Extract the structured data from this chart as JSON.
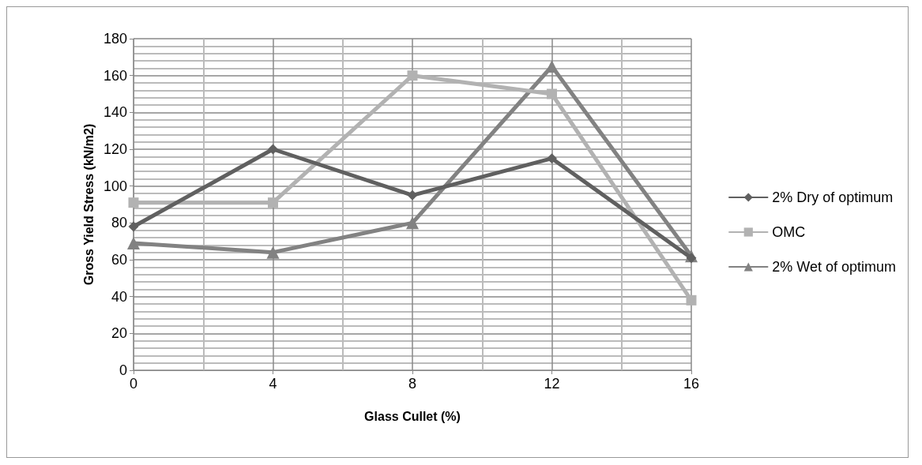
{
  "chart_data": {
    "type": "line",
    "xlabel": "Glass Cullet (%)",
    "ylabel": "Gross Yield Stress (kN/m2)",
    "x": [
      0,
      4,
      8,
      12,
      16
    ],
    "xlim": [
      0,
      16
    ],
    "xticks": [
      0,
      4,
      8,
      12,
      16
    ],
    "ylim": [
      0,
      180
    ],
    "yticks": [
      0,
      20,
      40,
      60,
      80,
      100,
      120,
      140,
      160,
      180
    ],
    "grid": true,
    "legend": "right",
    "series": [
      {
        "name": "2% Dry of optimum",
        "color": "#606060",
        "marker": "diamond",
        "values": [
          78,
          120,
          95,
          115,
          61
        ]
      },
      {
        "name": "OMC",
        "color": "#b2b2b2",
        "marker": "square",
        "values": [
          91,
          91,
          160,
          150,
          38
        ]
      },
      {
        "name": "2% Wet of optimum",
        "color": "#828282",
        "marker": "triangle",
        "values": [
          69,
          64,
          80,
          165,
          62
        ]
      }
    ]
  }
}
